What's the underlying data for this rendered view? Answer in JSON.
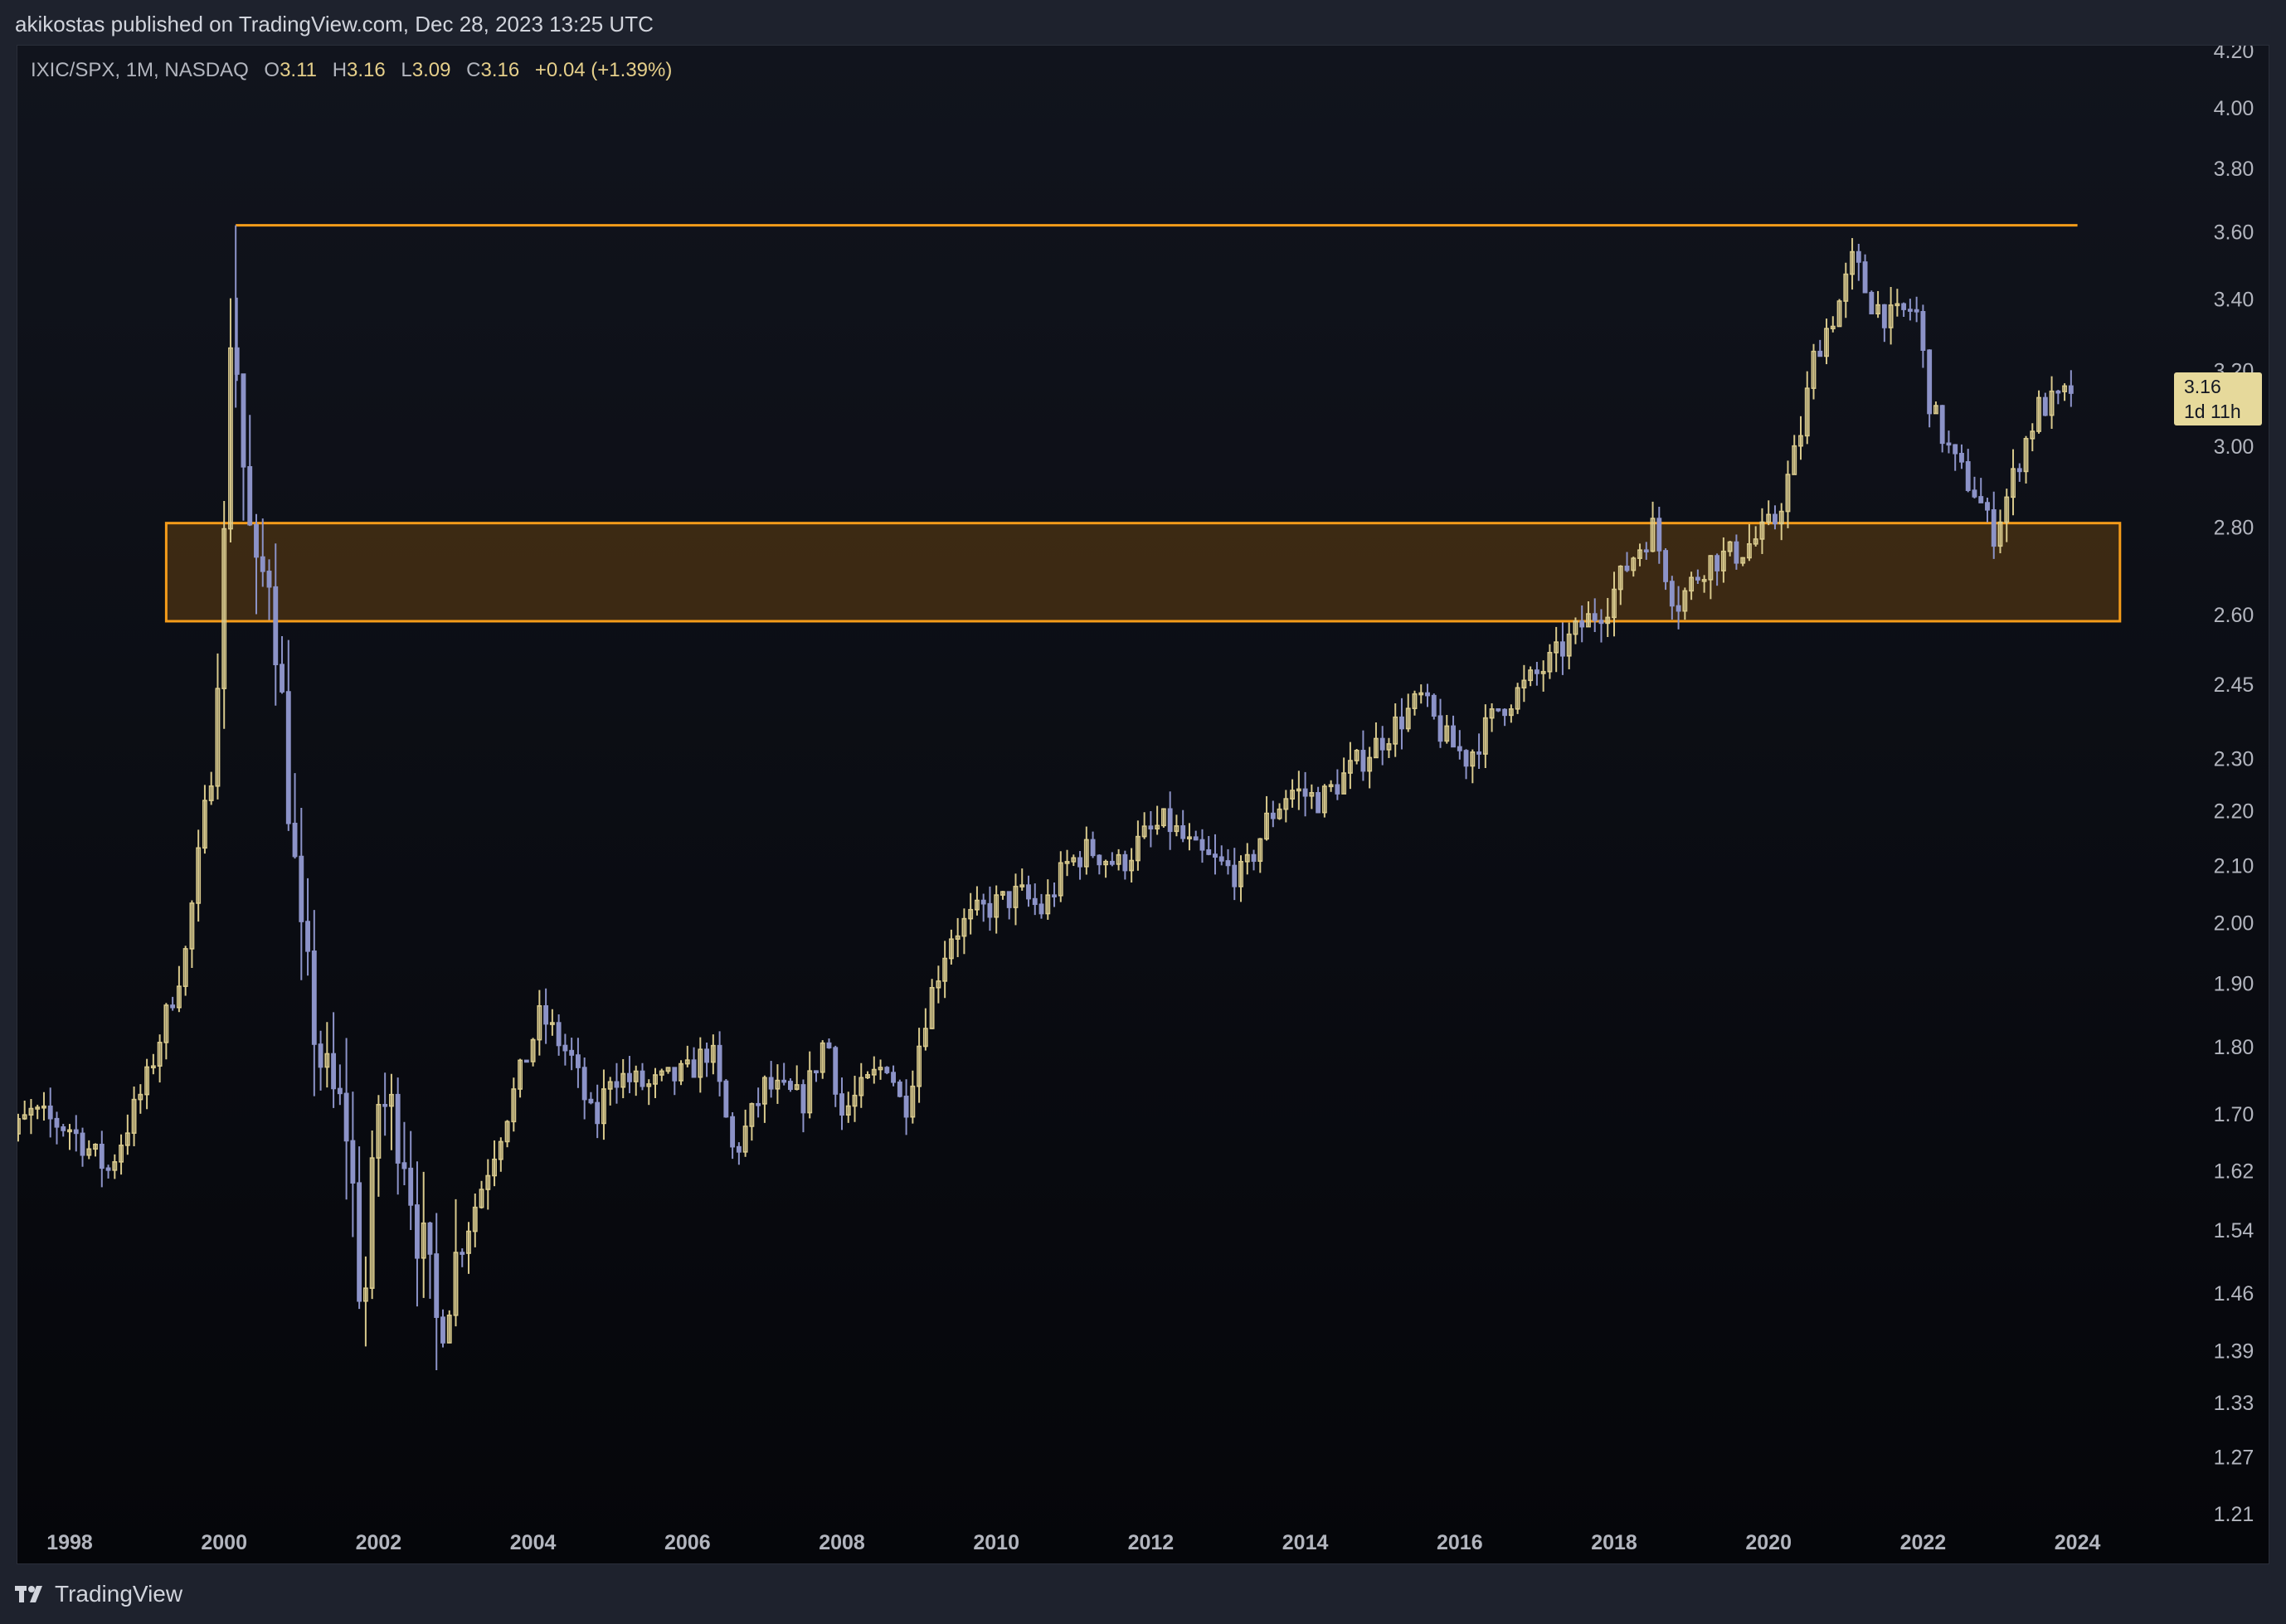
{
  "publish_note": "akikostas published on TradingView.com, Dec 28, 2023 13:25 UTC",
  "legend": {
    "symbol": "IXIC/SPX, 1M, NASDAQ",
    "open_label": "O",
    "open": "3.11",
    "high_label": "H",
    "high": "3.16",
    "low_label": "L",
    "low": "3.09",
    "close_label": "C",
    "close": "3.16",
    "change": "+0.04 (+1.39%)"
  },
  "price_tag": {
    "price": "3.16",
    "countdown": "1d 11h"
  },
  "footer": {
    "brand": "TradingView",
    "logo_icon": "tradingview-logo-icon"
  },
  "colors": {
    "up_candle": "#d8c98c",
    "down_candle": "#8c93c8",
    "annotation": "#f59c1a",
    "zone_fill": "#5a3a12"
  },
  "chart_data": {
    "type": "candlestick",
    "scale": "log",
    "ylim": [
      1.21,
      4.2
    ],
    "y_ticks": [
      "4.20",
      "4.00",
      "3.80",
      "3.60",
      "3.40",
      "3.20",
      "3.00",
      "2.80",
      "2.60",
      "2.45",
      "2.30",
      "2.20",
      "2.10",
      "2.00",
      "1.90",
      "1.80",
      "1.70",
      "1.62",
      "1.54",
      "1.46",
      "1.39",
      "1.33",
      "1.27",
      "1.21"
    ],
    "x_ticks": [
      "1998",
      "2000",
      "2002",
      "2004",
      "2006",
      "2008",
      "2010",
      "2012",
      "2014",
      "2016",
      "2018",
      "2020",
      "2022",
      "2024"
    ],
    "xlim": [
      1997.0,
      2024.25
    ],
    "close_path": [
      [
        1997.0,
        1.64
      ],
      [
        1997.5,
        1.7
      ],
      [
        1998.0,
        1.68
      ],
      [
        1998.5,
        1.62
      ],
      [
        1999.0,
        1.75
      ],
      [
        1999.5,
        1.95
      ],
      [
        1999.8,
        2.25
      ],
      [
        2000.0,
        2.75
      ],
      [
        2000.1,
        3.45
      ],
      [
        2000.25,
        2.95
      ],
      [
        2000.4,
        2.65
      ],
      [
        2000.6,
        2.72
      ],
      [
        2000.8,
        2.3
      ],
      [
        2001.0,
        1.95
      ],
      [
        2001.3,
        1.75
      ],
      [
        2001.6,
        1.68
      ],
      [
        2001.8,
        1.42
      ],
      [
        2002.0,
        1.72
      ],
      [
        2002.3,
        1.68
      ],
      [
        2002.5,
        1.55
      ],
      [
        2002.75,
        1.42
      ],
      [
        2003.0,
        1.5
      ],
      [
        2003.5,
        1.65
      ],
      [
        2003.9,
        1.78
      ],
      [
        2004.1,
        1.85
      ],
      [
        2004.5,
        1.78
      ],
      [
        2004.8,
        1.68
      ],
      [
        2005.0,
        1.76
      ],
      [
        2005.5,
        1.74
      ],
      [
        2006.0,
        1.76
      ],
      [
        2006.3,
        1.8
      ],
      [
        2006.6,
        1.64
      ],
      [
        2007.0,
        1.74
      ],
      [
        2007.5,
        1.72
      ],
      [
        2007.8,
        1.82
      ],
      [
        2008.0,
        1.7
      ],
      [
        2008.3,
        1.74
      ],
      [
        2008.6,
        1.78
      ],
      [
        2008.8,
        1.7
      ],
      [
        2009.1,
        1.86
      ],
      [
        2009.4,
        1.98
      ],
      [
        2009.8,
        2.02
      ],
      [
        2010.3,
        2.05
      ],
      [
        2010.6,
        2.02
      ],
      [
        2010.9,
        2.1
      ],
      [
        2011.2,
        2.13
      ],
      [
        2011.6,
        2.1
      ],
      [
        2011.9,
        2.15
      ],
      [
        2012.2,
        2.18
      ],
      [
        2012.6,
        2.12
      ],
      [
        2012.9,
        2.1
      ],
      [
        2013.2,
        2.08
      ],
      [
        2013.5,
        2.18
      ],
      [
        2013.8,
        2.24
      ],
      [
        2014.2,
        2.22
      ],
      [
        2014.6,
        2.28
      ],
      [
        2015.0,
        2.34
      ],
      [
        2015.5,
        2.42
      ],
      [
        2015.8,
        2.34
      ],
      [
        2016.1,
        2.3
      ],
      [
        2016.5,
        2.4
      ],
      [
        2016.8,
        2.44
      ],
      [
        2017.2,
        2.5
      ],
      [
        2017.6,
        2.58
      ],
      [
        2017.9,
        2.62
      ],
      [
        2018.2,
        2.72
      ],
      [
        2018.5,
        2.8
      ],
      [
        2018.8,
        2.62
      ],
      [
        2019.2,
        2.72
      ],
      [
        2019.6,
        2.74
      ],
      [
        2019.9,
        2.78
      ],
      [
        2020.1,
        2.82
      ],
      [
        2020.4,
        3.02
      ],
      [
        2020.6,
        3.25
      ],
      [
        2020.9,
        3.38
      ],
      [
        2021.1,
        3.52
      ],
      [
        2021.3,
        3.4
      ],
      [
        2021.6,
        3.34
      ],
      [
        2021.9,
        3.38
      ],
      [
        2022.1,
        3.1
      ],
      [
        2022.4,
        2.96
      ],
      [
        2022.7,
        2.88
      ],
      [
        2022.9,
        2.78
      ],
      [
        2023.1,
        2.88
      ],
      [
        2023.3,
        3.0
      ],
      [
        2023.5,
        3.1
      ],
      [
        2023.8,
        3.12
      ],
      [
        2023.96,
        3.16
      ]
    ],
    "annotations": {
      "resistance_line": {
        "y": 3.62,
        "x_start": 2000.15,
        "x_end": 2024.0
      },
      "support_zone": {
        "y_low": 2.585,
        "y_high": 2.81,
        "x_start": 1999.25,
        "x_end": 2024.55
      }
    }
  }
}
